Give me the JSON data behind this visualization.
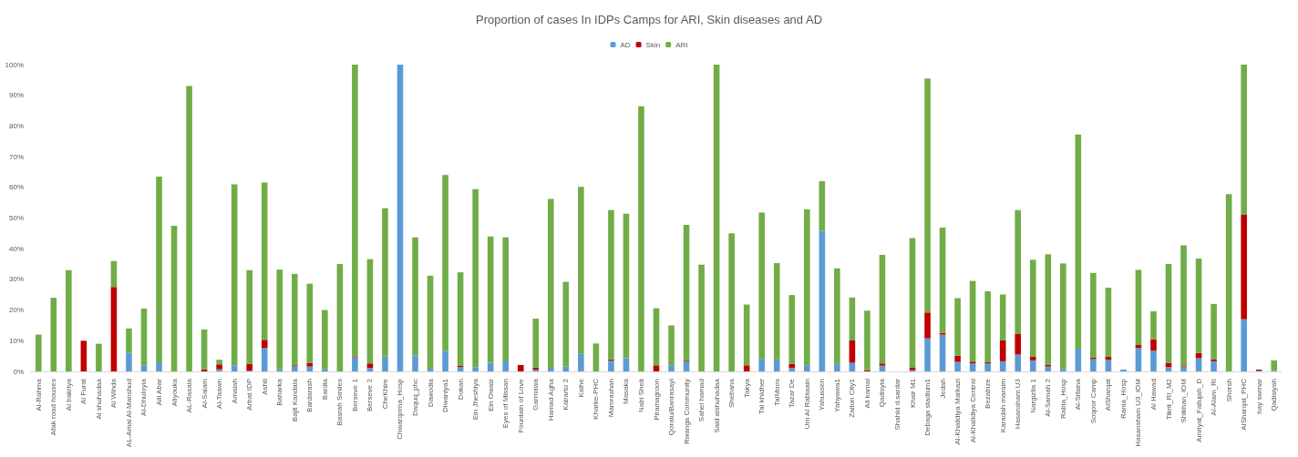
{
  "chart_data": {
    "type": "bar",
    "stacked": true,
    "title": "Proportion of cases In IDPs Camps for ARI, Skin diseases and AD",
    "legend": "top",
    "grid": false,
    "categories": [
      "Al-Rahma",
      "Afak road houses",
      "Al bakriya",
      "Al Furat",
      "Al shuhadaa",
      "Al Wihda",
      "AL-Amal Al-Manshud",
      "Al-Dhuloyia",
      "Alli Abar",
      "Aliyouka",
      "AL-Rasala",
      "Al-Salam",
      "Al-Taawn",
      "Amalah",
      "Arbat IDP",
      "Ashti",
      "Baharka",
      "Bajit Kandala",
      "Bardarash",
      "Bardia",
      "Basrah Smiles",
      "Berseve 1",
      "Berseve 2",
      "CheKhire",
      "Chwarqorna_Hosp",
      "Daquq_phc",
      "Dawodia",
      "Diwaniya1",
      "Dokan",
      "Ein Jheshiya",
      "Ein Owaiz",
      "Eyes of Missan",
      "Fountain of Love",
      "Garmawa",
      "Hamad Agha",
      "Kabarto 2",
      "Kalhe",
      "Kharke-PHC",
      "Mamrashan",
      "Masaka",
      "Nabi Sheit",
      "Piramagroon",
      "Qoratu/Banrasayi",
      "Rwanga Community",
      "Sahel hamad",
      "Said alshuhadaa",
      "Shebana",
      "Takya",
      "Tal khidher",
      "TalMoos",
      "Tazar De",
      "Um Al Rabiaain",
      "Yahussen",
      "Yahyawa1",
      "Zaiton City1",
      "Ali kamal",
      "Qadisyia",
      "Shahid d.sardar",
      "Khair M1",
      "Debaga stadium1",
      "Jedah",
      "Al-Khalidiya Markazi",
      "Al-Khalidiya Central",
      "Bezabize",
      "Karadah maraim",
      "Hasansham U3",
      "Nargizlia 1",
      "Al-Samah 2",
      "Rabia_Hosp",
      "Al-Sifaina",
      "Soqoor Camp",
      "AlSharqat",
      "Rania_Hosp",
      "Hasansham U3_IOM",
      "Al Hawad",
      "Tikrit_RI_M2",
      "Shikhan_IOM",
      "Amriyat_Fallujah_D",
      "Al-Alam_RI",
      "Shorsh",
      "AlSharqat_PHC",
      "hay swmar",
      "Qadisiyah"
    ],
    "series": [
      {
        "name": "AD",
        "color": "#5b9bd5",
        "values": [
          0,
          0,
          0,
          0,
          0,
          0,
          6,
          2,
          3,
          0,
          0,
          0,
          0.7,
          2,
          0.3,
          7.6,
          0.7,
          1.7,
          1.6,
          0.8,
          0,
          4.6,
          1.1,
          4.9,
          100,
          5.2,
          0.9,
          6.7,
          1.4,
          1.4,
          2.8,
          3.3,
          0,
          0.6,
          1.2,
          1.6,
          5.7,
          0,
          3.5,
          4.3,
          0,
          0,
          2,
          3.2,
          0,
          0,
          0,
          0,
          4.1,
          3.9,
          1.1,
          2,
          45.8,
          2.4,
          2.8,
          0,
          1.9,
          0,
          0.4,
          10.8,
          12,
          3.1,
          2.6,
          2.6,
          3.3,
          5.5,
          3.6,
          1.6,
          0.8,
          7.4,
          4,
          3.8,
          0.6,
          7.6,
          6.7,
          1.4,
          1.4,
          4.3,
          3.3,
          0,
          17,
          0.3,
          0.2
        ]
      },
      {
        "name": "Skin",
        "color": "#c00000",
        "values": [
          0,
          0,
          0,
          10,
          0,
          27.5,
          0,
          0,
          0,
          0,
          0,
          0.7,
          1.6,
          0,
          2.2,
          2.7,
          0,
          0.3,
          1.2,
          0,
          0,
          0.3,
          1.5,
          0,
          0,
          0,
          0,
          0,
          0.4,
          0,
          0,
          0,
          2.1,
          0.6,
          0,
          0,
          0,
          0,
          0.4,
          0,
          0,
          2,
          0,
          0.3,
          0,
          0,
          0,
          2,
          0,
          0,
          1.4,
          0,
          0,
          0,
          7.3,
          0.4,
          0.7,
          0,
          0.8,
          8.4,
          0.6,
          2,
          0.6,
          0.4,
          6.8,
          6.7,
          1.2,
          0.5,
          0,
          0,
          0.6,
          1,
          0,
          1,
          3.8,
          1.4,
          0.3,
          1.7,
          0.7,
          0,
          34.2,
          0.3,
          0
        ]
      },
      {
        "name": "ARI",
        "color": "#70ad47",
        "values": [
          12,
          24,
          33,
          0,
          9,
          8.5,
          8,
          18.5,
          60.5,
          47.5,
          93,
          13,
          1.5,
          59,
          30.5,
          51.3,
          32.5,
          29.8,
          25.8,
          19.2,
          35,
          95.1,
          34,
          48.3,
          0,
          38.5,
          30.3,
          57.3,
          30.5,
          58,
          41.2,
          40.4,
          0,
          16,
          55,
          27.6,
          54.5,
          9.1,
          48.7,
          47.1,
          86.4,
          18.6,
          13,
          44.3,
          34.8,
          100,
          45,
          19.8,
          47.7,
          31.4,
          22.4,
          50.8,
          16.2,
          31.2,
          14,
          19.4,
          35.4,
          0,
          42.3,
          76.3,
          34.3,
          18.8,
          26.3,
          23.1,
          15,
          40.4,
          31.6,
          36.1,
          34.4,
          69.8,
          27.5,
          22.5,
          0,
          24.5,
          9.1,
          32.2,
          39.4,
          30.8,
          18,
          57.8,
          48.8,
          0,
          3.4
        ]
      }
    ],
    "ylim": [
      0,
      100
    ],
    "yticks": [
      {
        "value": 0,
        "label": "0%"
      },
      {
        "value": 10,
        "label": "10%"
      },
      {
        "value": 20,
        "label": "20%"
      },
      {
        "value": 30,
        "label": "30%"
      },
      {
        "value": 40,
        "label": "40%"
      },
      {
        "value": 50,
        "label": "50%"
      },
      {
        "value": 60,
        "label": "60%"
      },
      {
        "value": 70,
        "label": "70%"
      },
      {
        "value": 80,
        "label": "80%"
      },
      {
        "value": 90,
        "label": "90%"
      },
      {
        "value": 100,
        "label": "100%"
      }
    ]
  }
}
